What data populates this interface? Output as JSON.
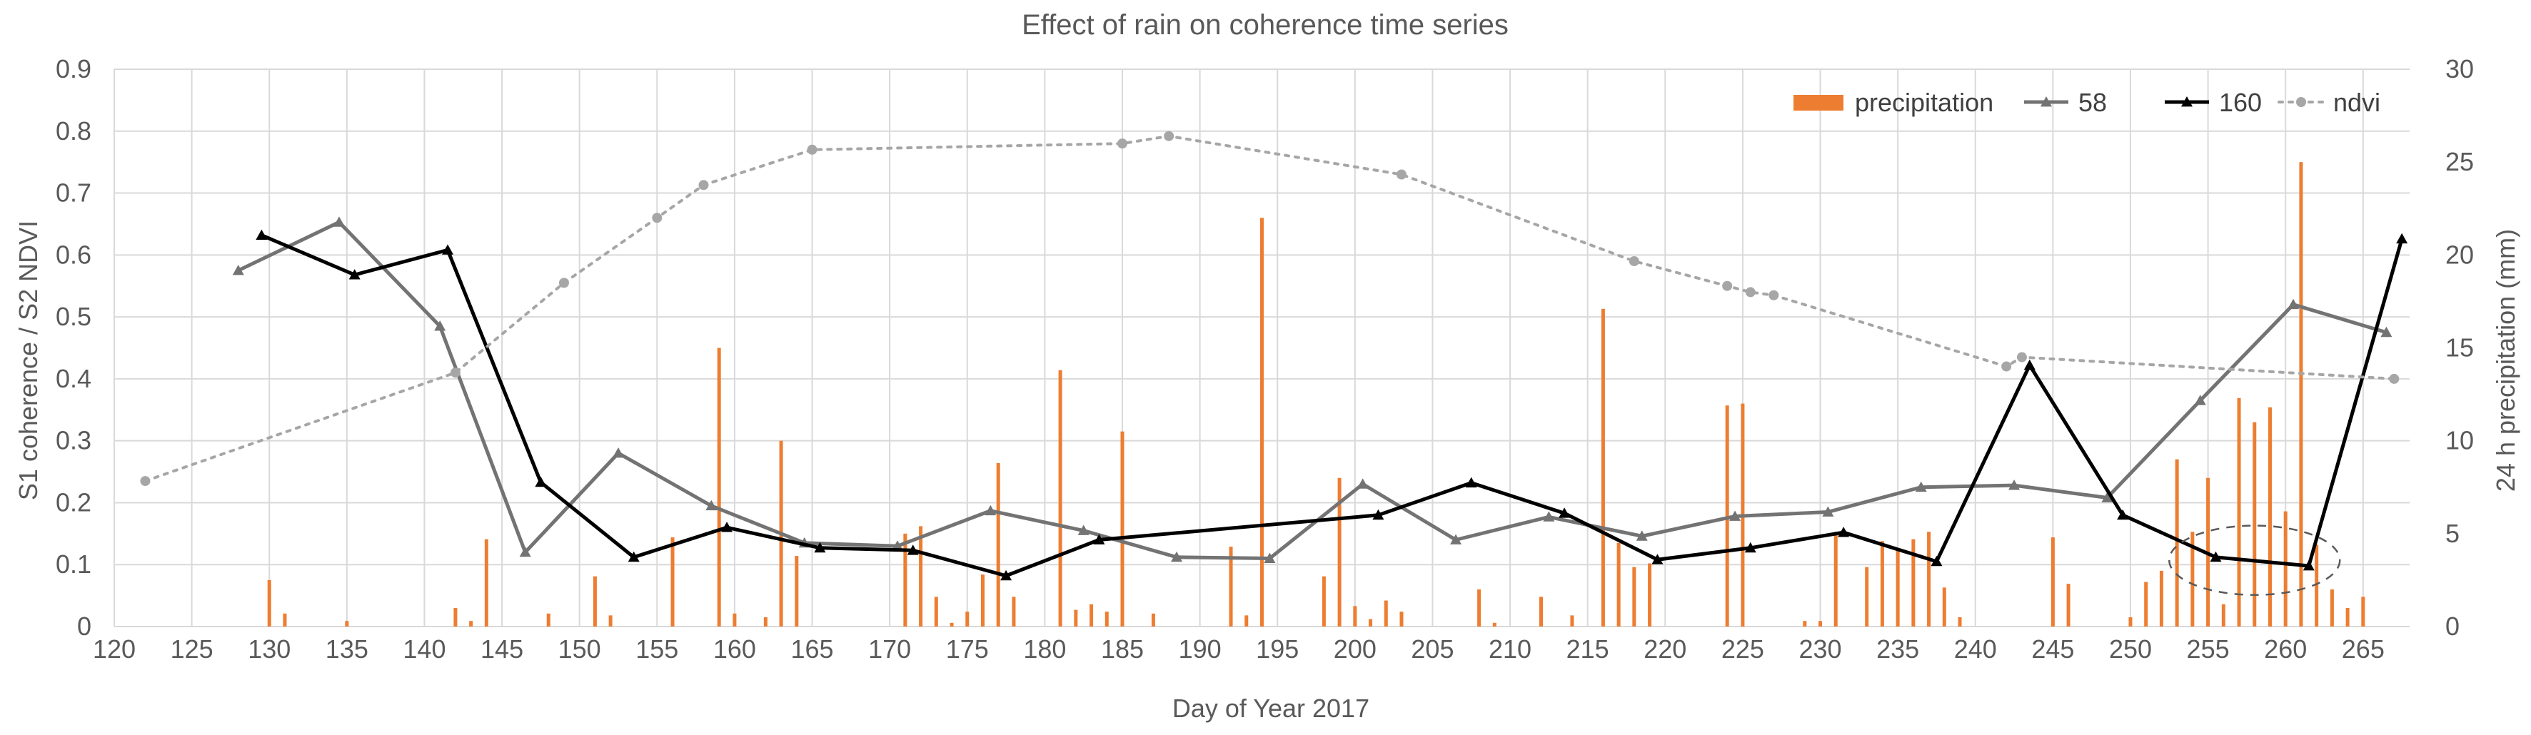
{
  "chart_data": {
    "type": "bar+line",
    "title": "Effect of rain on coherence time series",
    "xlabel": "Day of Year 2017",
    "ylabel_left": "S1 coherence / S2 NDVI",
    "ylabel_right": "24 h precipitation (mm)",
    "xlim": [
      120,
      268
    ],
    "xticks": [
      120,
      125,
      130,
      135,
      140,
      145,
      150,
      155,
      160,
      165,
      170,
      175,
      180,
      185,
      190,
      195,
      200,
      205,
      210,
      215,
      220,
      225,
      230,
      235,
      240,
      245,
      250,
      255,
      260,
      265
    ],
    "ylim_left": [
      0,
      0.9
    ],
    "yticks_left": [
      "0",
      "0.1",
      "0.2",
      "0.3",
      "0.4",
      "0.5",
      "0.6",
      "0.7",
      "0.8",
      "0.9"
    ],
    "ylim_right": [
      0,
      30
    ],
    "yticks_right": [
      "0",
      "5",
      "10",
      "15",
      "20",
      "25",
      "30"
    ],
    "legend": [
      {
        "name": "precipitation",
        "type": "bar",
        "color": "#ED7D31"
      },
      {
        "name": "58",
        "type": "line-triangle",
        "color": "#737373"
      },
      {
        "name": "160",
        "type": "line-triangle",
        "color": "#000000"
      },
      {
        "name": "ndvi",
        "type": "dotted-circle",
        "color": "#A6A6A6"
      }
    ],
    "precipitation": {
      "name": "precipitation",
      "color": "#ED7D31",
      "days": [
        130,
        131,
        135,
        142,
        143,
        144,
        148,
        151,
        152,
        156,
        159,
        160,
        162,
        163,
        164,
        171,
        172,
        173,
        174,
        175,
        176,
        177,
        178,
        181,
        182,
        183,
        184,
        185,
        187,
        192,
        193,
        194,
        198,
        199,
        200,
        201,
        202,
        203,
        208,
        209,
        212,
        214,
        216,
        217,
        218,
        219,
        224,
        225,
        229,
        230,
        231,
        233,
        234,
        235,
        236,
        237,
        238,
        239,
        245,
        246,
        250,
        251,
        252,
        253,
        254,
        255,
        256,
        257,
        258,
        259,
        260,
        261,
        262,
        263,
        264,
        265
      ],
      "values": [
        2.5,
        0.7,
        0.3,
        1.0,
        0.3,
        4.7,
        0.7,
        2.7,
        0.6,
        4.8,
        15.0,
        0.7,
        0.5,
        10.0,
        3.8,
        5.0,
        5.4,
        1.6,
        0.2,
        0.8,
        2.8,
        8.8,
        1.6,
        13.8,
        0.9,
        1.2,
        0.8,
        10.5,
        0.7,
        4.3,
        0.6,
        22.0,
        2.7,
        8.0,
        1.1,
        0.4,
        1.4,
        0.8,
        2.0,
        0.2,
        1.6,
        0.6,
        17.1,
        4.5,
        3.2,
        3.4,
        11.9,
        12.0,
        0.3,
        0.3,
        5.1,
        3.2,
        4.6,
        4.2,
        4.7,
        5.1,
        2.1,
        0.5,
        4.8,
        2.3,
        0.5,
        2.4,
        3.0,
        9.0,
        5.1,
        8.0,
        1.2,
        12.3,
        11.0,
        11.8,
        6.2,
        25.0,
        4.4,
        2.0,
        1.0,
        1.6
      ]
    },
    "series": [
      {
        "name": "58",
        "color": "#737373",
        "x": [
          128,
          134.5,
          141,
          146.5,
          152.5,
          158.5,
          164.5,
          170.5,
          176.5,
          182.5,
          188.5,
          194.5,
          200.5,
          206.5,
          212.5,
          218.5,
          224.5,
          230.5,
          236.5,
          242.5,
          248.5,
          254.5,
          260.5,
          266.5
        ],
        "values": [
          0.575,
          0.653,
          0.485,
          0.12,
          0.28,
          0.195,
          0.135,
          0.13,
          0.187,
          0.155,
          0.112,
          0.11,
          0.23,
          0.14,
          0.177,
          0.146,
          0.178,
          0.185,
          0.225,
          0.228,
          0.208,
          0.365,
          0.52,
          0.475
        ]
      },
      {
        "name": "160",
        "color": "#000000",
        "x": [
          129.5,
          135.5,
          141.5,
          147.5,
          153.5,
          159.5,
          165.5,
          171.5,
          177.5,
          183.5,
          201.5,
          207.5,
          213.5,
          219.5,
          225.5,
          231.5,
          237.5,
          243.5,
          249.5,
          255.5,
          261.5,
          267.5
        ],
        "values": [
          0.632,
          0.568,
          0.608,
          0.233,
          0.112,
          0.16,
          0.127,
          0.123,
          0.082,
          0.14,
          0.18,
          0.232,
          0.183,
          0.108,
          0.127,
          0.152,
          0.105,
          0.422,
          0.18,
          0.112,
          0.098,
          0.626
        ]
      },
      {
        "name": "ndvi",
        "color": "#A6A6A6",
        "x": [
          122,
          142,
          149,
          155,
          158,
          165,
          185,
          188,
          203,
          218,
          224,
          225.5,
          227,
          242,
          243,
          267
        ],
        "values": [
          0.235,
          0.41,
          0.555,
          0.66,
          0.713,
          0.77,
          0.78,
          0.792,
          0.73,
          0.59,
          0.55,
          0.54,
          0.535,
          0.42,
          0.435,
          0.4
        ]
      }
    ],
    "annotation": {
      "type": "dashed-ellipse",
      "center_day": 258,
      "center_value": 0.107,
      "span_days": 11,
      "span_value": 0.112
    }
  }
}
